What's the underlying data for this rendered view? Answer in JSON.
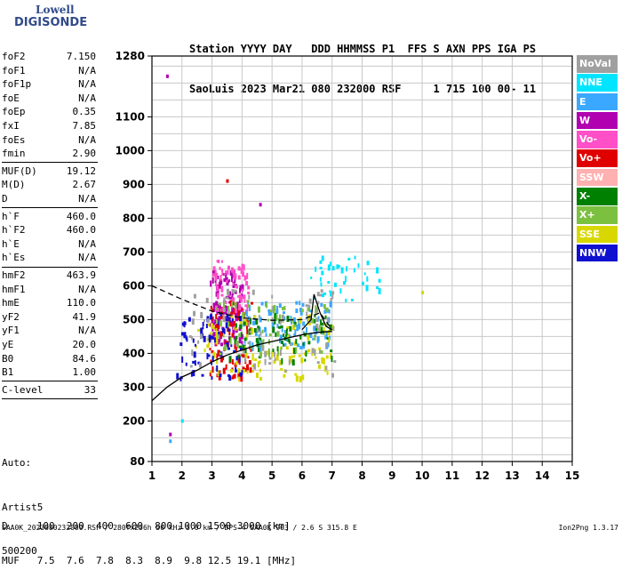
{
  "logo": {
    "line1": "Lowell",
    "line2": "DIGISONDE"
  },
  "header": {
    "line1": "Station YYYY DAY   DDD HHMMSS P1  FFS S AXN PPS IGA PS",
    "line2": "SaoLuis 2023 Mar21 080 232000 RSF     1 715 100 00- 11"
  },
  "params": {
    "group1": [
      {
        "name": "foF2",
        "value": "7.150"
      },
      {
        "name": "foF1",
        "value": "N/A"
      },
      {
        "name": "foF1p",
        "value": "N/A"
      },
      {
        "name": "foE",
        "value": "N/A"
      },
      {
        "name": "foEp",
        "value": "0.35"
      },
      {
        "name": "fxI",
        "value": "7.85"
      },
      {
        "name": "foEs",
        "value": "N/A"
      },
      {
        "name": "fmin",
        "value": "2.90"
      }
    ],
    "group2": [
      {
        "name": "MUF(D)",
        "value": "19.12"
      },
      {
        "name": "M(D)",
        "value": "2.67"
      },
      {
        "name": "D",
        "value": "N/A"
      }
    ],
    "group3": [
      {
        "name": "h`F",
        "value": "460.0"
      },
      {
        "name": "h`F2",
        "value": "460.0"
      },
      {
        "name": "h`E",
        "value": "N/A"
      },
      {
        "name": "h`Es",
        "value": "N/A"
      }
    ],
    "group4": [
      {
        "name": "hmF2",
        "value": "463.9"
      },
      {
        "name": "hmF1",
        "value": "N/A"
      },
      {
        "name": "hmE",
        "value": "110.0"
      },
      {
        "name": "yF2",
        "value": "41.9"
      },
      {
        "name": "yF1",
        "value": "N/A"
      },
      {
        "name": "yE",
        "value": "20.0"
      },
      {
        "name": "B0",
        "value": "84.6"
      },
      {
        "name": "B1",
        "value": "1.00"
      }
    ],
    "group5": [
      {
        "name": "C-level",
        "value": "33"
      }
    ]
  },
  "auto": {
    "line1": "Auto:",
    "line2": "Artist5",
    "line3": "500200"
  },
  "bottom": {
    "d_line": "D     100  200  400  600  800 1000 1500 3000 [km]",
    "muf_line": "MUF   7.5  7.6  7.8  8.3  8.9  9.8 12.5 19.1 [MHz]",
    "footer": "SAA0K_2023080232000.RSF / 280fx256h 50 kHz 5.0 km / DPS-4 SAA0K 903 / 2.6 S 315.8 E",
    "version": "Ion2Png 1.3.17"
  },
  "legend": [
    {
      "label": "NoVal",
      "color": "#a0a0a0"
    },
    {
      "label": "NNE",
      "color": "#00e5ff"
    },
    {
      "label": "E",
      "color": "#3aa8ff"
    },
    {
      "label": "W",
      "color": "#b000b0"
    },
    {
      "label": "Vo-",
      "color": "#ff50c8"
    },
    {
      "label": "Vo+",
      "color": "#e00000"
    },
    {
      "label": "SSW",
      "color": "#ffb0b0"
    },
    {
      "label": "X-",
      "color": "#008000"
    },
    {
      "label": "X+",
      "color": "#7cc040"
    },
    {
      "label": "SSE",
      "color": "#d8d800"
    },
    {
      "label": "NNW",
      "color": "#1010d0"
    }
  ],
  "chart_data": {
    "type": "scatter",
    "title": "",
    "xlabel": "",
    "ylabel": "",
    "xlim": [
      1,
      15
    ],
    "ylim": [
      80,
      1280
    ],
    "x_ticks": [
      "1",
      "2",
      "3",
      "4",
      "5",
      "6",
      "7",
      "8",
      "9",
      "10",
      "11",
      "12",
      "13",
      "14",
      "15"
    ],
    "y_ticks": [
      {
        "v": 80,
        "label": "80"
      },
      {
        "v": 200,
        "label": "200"
      },
      {
        "v": 300,
        "label": "300"
      },
      {
        "v": 400,
        "label": "400"
      },
      {
        "v": 500,
        "label": "500"
      },
      {
        "v": 600,
        "label": "600"
      },
      {
        "v": 700,
        "label": "700"
      },
      {
        "v": 800,
        "label": "800"
      },
      {
        "v": 900,
        "label": "900"
      },
      {
        "v": 1000,
        "label": "1000"
      },
      {
        "v": 1100,
        "label": "1100"
      },
      {
        "v": 1280,
        "label": "1280"
      }
    ],
    "grid": true,
    "echo_clusters": [
      {
        "color": "#b000b0",
        "x": [
          2.9,
          4.0
        ],
        "y": [
          430,
          650
        ],
        "n": 120
      },
      {
        "color": "#e00000",
        "x": [
          2.9,
          4.3
        ],
        "y": [
          330,
          560
        ],
        "n": 90
      },
      {
        "color": "#3aa8ff",
        "x": [
          4.0,
          7.0
        ],
        "y": [
          420,
          560
        ],
        "n": 110
      },
      {
        "color": "#d8d800",
        "x": [
          2.3,
          7.0
        ],
        "y": [
          330,
          520
        ],
        "n": 110
      },
      {
        "color": "#008000",
        "x": [
          3.5,
          7.0
        ],
        "y": [
          380,
          520
        ],
        "n": 70
      },
      {
        "color": "#1010d0",
        "x": [
          1.8,
          4.0
        ],
        "y": [
          330,
          520
        ],
        "n": 70
      },
      {
        "color": "#ff50c8",
        "x": [
          3.0,
          4.2
        ],
        "y": [
          520,
          680
        ],
        "n": 60
      },
      {
        "color": "#a0a0a0",
        "x": [
          2.2,
          7.2
        ],
        "y": [
          340,
          600
        ],
        "n": 80
      },
      {
        "color": "#00e5ff",
        "x": [
          6.2,
          8.6
        ],
        "y": [
          560,
          690
        ],
        "n": 40
      },
      {
        "color": "#7cc040",
        "x": [
          3.0,
          7.0
        ],
        "y": [
          400,
          560
        ],
        "n": 60
      }
    ],
    "isolated_points": [
      {
        "x": 1.5,
        "y": 1220,
        "color": "#b000b0"
      },
      {
        "x": 1.6,
        "y": 160,
        "color": "#b000b0"
      },
      {
        "x": 1.6,
        "y": 140,
        "color": "#3aa8ff"
      },
      {
        "x": 2.0,
        "y": 200,
        "color": "#00e5ff"
      },
      {
        "x": 3.5,
        "y": 910,
        "color": "#e00000"
      },
      {
        "x": 4.6,
        "y": 840,
        "color": "#b000b0"
      },
      {
        "x": 10.0,
        "y": 580,
        "color": "#d8d800"
      }
    ],
    "curves": [
      {
        "name": "",
        "style": "dashed",
        "points": [
          [
            1.0,
            600
          ],
          [
            2.0,
            560
          ],
          [
            3.0,
            525
          ],
          [
            4.0,
            505
          ],
          [
            5.0,
            498
          ],
          [
            6.0,
            500
          ],
          [
            6.6,
            520
          ],
          [
            7.0,
            470
          ]
        ]
      },
      {
        "name": "",
        "style": "solid",
        "points": [
          [
            1.0,
            260
          ],
          [
            1.5,
            300
          ],
          [
            2.0,
            330
          ],
          [
            2.5,
            350
          ],
          [
            3.0,
            375
          ],
          [
            3.5,
            395
          ],
          [
            4.0,
            410
          ],
          [
            4.5,
            425
          ],
          [
            5.0,
            435
          ],
          [
            5.5,
            445
          ],
          [
            6.0,
            455
          ],
          [
            6.5,
            462
          ],
          [
            7.0,
            465
          ]
        ]
      },
      {
        "name": "",
        "style": "solid",
        "points": [
          [
            6.0,
            470
          ],
          [
            6.3,
            500
          ],
          [
            6.4,
            575
          ],
          [
            6.6,
            520
          ],
          [
            6.8,
            480
          ],
          [
            7.0,
            470
          ]
        ]
      }
    ]
  }
}
